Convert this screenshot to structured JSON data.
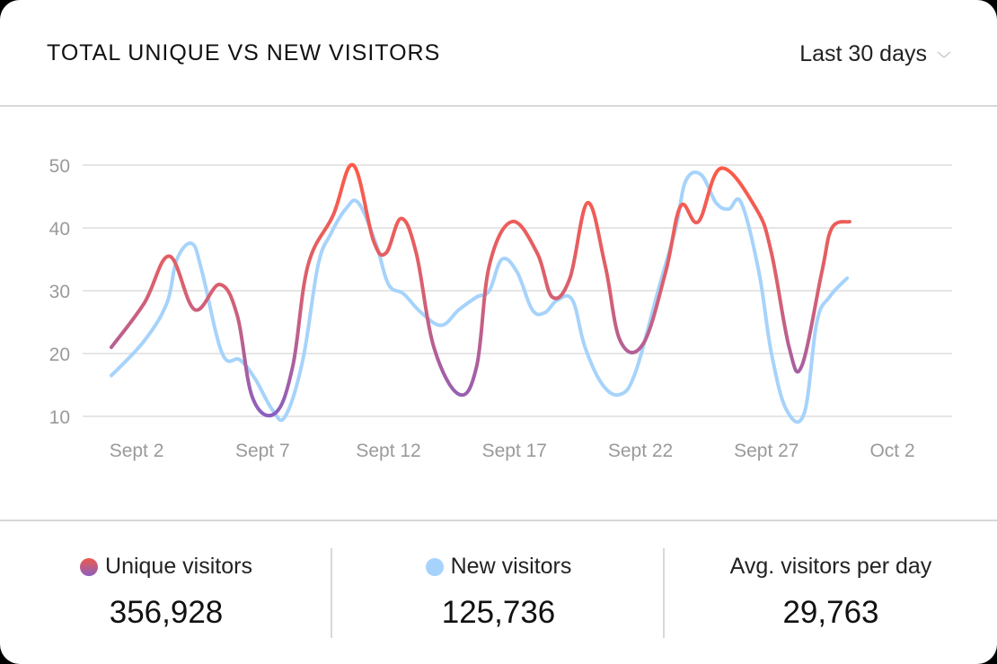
{
  "header": {
    "title": "TOTAL UNIQUE VS NEW VISITORS",
    "range_label": "Last 30 days"
  },
  "stats": [
    {
      "label": "Unique visitors",
      "value": "356,928",
      "dot": "unique"
    },
    {
      "label": "New visitors",
      "value": "125,736",
      "dot": "new"
    },
    {
      "label": "Avg. visitors per day",
      "value": "29,763",
      "dot": null
    }
  ],
  "colors": {
    "unique_top": "#ff5a45",
    "unique_bottom": "#8b5fbf",
    "new": "#a6d3fb",
    "grid": "#e6e6e6",
    "tick": "#9a9a9a"
  },
  "chart_data": {
    "type": "line",
    "title": "TOTAL UNIQUE VS NEW VISITORS",
    "xlabel": "",
    "ylabel": "",
    "ylim": [
      10,
      50
    ],
    "yticks": [
      10,
      20,
      30,
      40,
      50
    ],
    "grid": true,
    "legend_position": "bottom",
    "x_tick_labels": [
      "Sept 2",
      "Sept 7",
      "Sept 12",
      "Sept 17",
      "Sept 22",
      "Sept 27",
      "Oct 2"
    ],
    "x_tick_days": [
      1,
      6,
      11,
      16,
      21,
      26,
      31
    ],
    "series": [
      {
        "name": "Unique visitors",
        "points": [
          [
            0,
            21
          ],
          [
            1.3,
            28
          ],
          [
            2.3,
            35.5
          ],
          [
            3.3,
            27
          ],
          [
            4.3,
            31
          ],
          [
            5,
            26
          ],
          [
            5.6,
            13
          ],
          [
            6.5,
            10.5
          ],
          [
            7.2,
            18
          ],
          [
            7.8,
            34
          ],
          [
            8.8,
            42
          ],
          [
            9.6,
            50
          ],
          [
            10.4,
            38
          ],
          [
            10.9,
            36
          ],
          [
            11.5,
            41.5
          ],
          [
            12.1,
            36
          ],
          [
            12.8,
            21
          ],
          [
            13.8,
            13.5
          ],
          [
            14.5,
            18
          ],
          [
            15,
            34
          ],
          [
            15.9,
            41
          ],
          [
            16.9,
            36
          ],
          [
            17.5,
            29
          ],
          [
            18.2,
            32
          ],
          [
            18.9,
            44
          ],
          [
            19.6,
            34
          ],
          [
            20.2,
            22
          ],
          [
            21.1,
            21.5
          ],
          [
            22,
            33
          ],
          [
            22.6,
            43.5
          ],
          [
            23.3,
            41
          ],
          [
            24.2,
            49.5
          ],
          [
            25.6,
            43
          ],
          [
            26.2,
            36
          ],
          [
            26.9,
            21
          ],
          [
            27.4,
            18
          ],
          [
            28.2,
            33
          ],
          [
            28.6,
            40
          ],
          [
            29.3,
            41
          ]
        ]
      },
      {
        "name": "New visitors",
        "points": [
          [
            0,
            16.5
          ],
          [
            1.3,
            22
          ],
          [
            2.2,
            28
          ],
          [
            2.6,
            35
          ],
          [
            3.2,
            37.5
          ],
          [
            3.6,
            33
          ],
          [
            4.4,
            20
          ],
          [
            5.1,
            19
          ],
          [
            5.7,
            16
          ],
          [
            6.4,
            11
          ],
          [
            6.9,
            10
          ],
          [
            7.6,
            19
          ],
          [
            8.2,
            34
          ],
          [
            8.7,
            39
          ],
          [
            9.3,
            43
          ],
          [
            9.8,
            44
          ],
          [
            10.5,
            37.5
          ],
          [
            11,
            31
          ],
          [
            11.6,
            29.5
          ],
          [
            12.3,
            26.5
          ],
          [
            13.1,
            24.5
          ],
          [
            13.8,
            27
          ],
          [
            14.5,
            29
          ],
          [
            15,
            30
          ],
          [
            15.5,
            35
          ],
          [
            16.1,
            33
          ],
          [
            16.7,
            27
          ],
          [
            17.2,
            26.5
          ],
          [
            17.7,
            28.5
          ],
          [
            18.3,
            28.5
          ],
          [
            18.8,
            21
          ],
          [
            19.5,
            15
          ],
          [
            20.2,
            13.5
          ],
          [
            20.8,
            17
          ],
          [
            21.7,
            30
          ],
          [
            22.4,
            40
          ],
          [
            22.8,
            47.5
          ],
          [
            23.4,
            48.5
          ],
          [
            24,
            44
          ],
          [
            24.5,
            43
          ],
          [
            25,
            44
          ],
          [
            25.7,
            33
          ],
          [
            26.2,
            20
          ],
          [
            26.8,
            11
          ],
          [
            27.5,
            10.5
          ],
          [
            28,
            25
          ],
          [
            28.5,
            29
          ],
          [
            29.2,
            32
          ]
        ]
      }
    ]
  }
}
